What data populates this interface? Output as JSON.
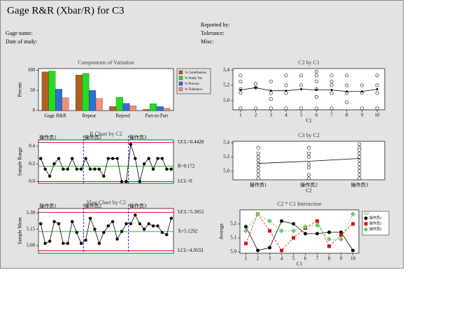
{
  "header": {
    "title": "Gage R&R (Xbar/R) for C3",
    "gage_name": "Gage name:",
    "date": "Date of study:",
    "reported_by": "Reported by:",
    "tolerance": "Tolerance:",
    "misc": "Misc:"
  },
  "chart_data": [
    {
      "type": "bar",
      "title": "Components of Variation",
      "y_label": "Percent",
      "categories": [
        "Gage R&R",
        "Repeat",
        "Reprod",
        "Part-to-Part"
      ],
      "series": [
        {
          "name": "% Contribution",
          "color": "#b0601e",
          "values": [
            96,
            88,
            10,
            3
          ]
        },
        {
          "name": "% Study Var",
          "color": "#22dd22",
          "values": [
            98,
            92,
            33,
            17
          ]
        },
        {
          "name": "% Process",
          "color": "#2f6fd0",
          "values": [
            53,
            50,
            18,
            10
          ]
        },
        {
          "name": "% Tolerance",
          "color": "#f4907a",
          "values": [
            32,
            30,
            12,
            6
          ]
        }
      ],
      "ylim": [
        0,
        104
      ],
      "yticks": [
        {
          "value": 0,
          "label": "0"
        },
        50,
        100
      ],
      "legend": "right"
    },
    {
      "type": "control",
      "title": "R Chart by C2",
      "y_label": "Sample Range",
      "groups": [
        "操作员1",
        "操作员2",
        "操作员3"
      ],
      "values": [
        0.26,
        0.14,
        0.06,
        0.2,
        0.26,
        0.14,
        0.14,
        0.26,
        0.14,
        0.14,
        0.26,
        0.14,
        0.14,
        0.14,
        0.06,
        0.26,
        0.26,
        0.26,
        0.0,
        0.0,
        0.42,
        0.26,
        0.0,
        0.2,
        0.26,
        0.14,
        0.26,
        0.26,
        0.14,
        0.14
      ],
      "limits": [
        {
          "value": 0.4428,
          "label": "UCL=0.4428",
          "color": "#d00000"
        },
        {
          "value": 0.172,
          "label": "R=0.172",
          "color": "#00b000"
        },
        {
          "value": 0,
          "label": "LCL=0",
          "color": "#d00000"
        }
      ],
      "ylim": [
        -0.02,
        0.47
      ],
      "yticks": [
        {
          "value": 0,
          "label": "0.0"
        },
        0.2,
        0.4
      ]
    },
    {
      "type": "control",
      "title": "Xbar Chart by C2",
      "y_label": "Sample Mean",
      "groups": [
        "操作员1",
        "操作员2",
        "操作员3"
      ],
      "values": [
        5.2,
        5.02,
        5.04,
        5.22,
        5.2,
        5.02,
        5.02,
        5.22,
        5.12,
        5.02,
        5.05,
        5.25,
        5.15,
        5.02,
        5.12,
        5.18,
        5.22,
        5.06,
        5.13,
        5.2,
        5.2,
        5.28,
        5.2,
        5.15,
        5.2,
        5.18,
        5.18,
        5.12,
        5.1,
        5.25
      ],
      "limits": [
        {
          "value": 5.3052,
          "label": "UCL=5.3052",
          "color": "#d00000"
        },
        {
          "value": 5.1292,
          "label": "X=5.1292",
          "color": "#00b000"
        },
        {
          "value": 4.9533,
          "label": "LCL=4.9533",
          "color": "#d00000"
        }
      ],
      "ylim": [
        4.93,
        5.34
      ],
      "yticks": [
        {
          "value": 5.0,
          "label": "5.00"
        },
        5.15,
        {
          "value": 5.3,
          "label": "5.30"
        }
      ]
    },
    {
      "type": "scatter",
      "title": "C3 by C1",
      "x_label": "C1",
      "x": [
        1,
        1,
        1,
        1,
        1,
        2,
        2,
        2,
        3,
        3,
        3,
        3,
        4,
        4,
        4,
        4,
        5,
        5,
        5,
        6,
        6,
        6,
        6,
        6,
        6,
        7,
        7,
        7,
        7,
        7,
        8,
        8,
        8,
        8,
        9,
        9,
        9,
        10,
        10,
        10,
        10
      ],
      "values": [
        5.33,
        5.25,
        5.15,
        5.1,
        4.9,
        5.22,
        5.17,
        4.9,
        5.25,
        5.1,
        5.02,
        4.9,
        5.33,
        5.2,
        5.1,
        4.9,
        5.33,
        5.2,
        4.9,
        5.38,
        5.33,
        5.25,
        5.15,
        5.05,
        4.9,
        5.33,
        5.25,
        5.2,
        5.1,
        4.9,
        5.33,
        5.2,
        5.1,
        4.98,
        5.2,
        5.1,
        4.9,
        5.33,
        5.2,
        5.1,
        4.9
      ],
      "mean_x": [
        1,
        2,
        3,
        4,
        5,
        6,
        7,
        8,
        9,
        10
      ],
      "means": [
        5.14,
        5.17,
        5.13,
        5.13,
        5.15,
        5.14,
        5.14,
        5.12,
        5.12,
        5.15
      ],
      "xlim": [
        0.5,
        10.5
      ],
      "xticks": [
        1,
        2,
        3,
        4,
        5,
        6,
        7,
        8,
        9,
        10
      ],
      "ylim": [
        4.88,
        5.42
      ],
      "yticks": [
        {
          "value": 5.0,
          "label": "5.0"
        },
        5.2,
        5.4
      ]
    },
    {
      "type": "dotplot",
      "title": "C3 by C2",
      "x_label": "C2",
      "categories": [
        "操作员1",
        "操作员2",
        "操作员3"
      ],
      "points": [
        [
          5.33,
          5.25,
          5.2,
          5.15,
          5.1,
          5.05,
          5.0,
          4.95,
          4.9
        ],
        [
          5.33,
          5.25,
          5.2,
          5.1,
          5.05,
          4.95,
          4.9
        ],
        [
          5.38,
          5.33,
          5.3,
          5.25,
          5.2,
          5.15,
          5.1,
          5.05,
          5.0,
          4.95,
          4.9
        ]
      ],
      "means": [
        5.11,
        5.14,
        5.18
      ],
      "ylim": [
        4.88,
        5.42
      ],
      "yticks": [
        {
          "value": 5.0,
          "label": "5.0"
        },
        5.2,
        5.4
      ]
    },
    {
      "type": "line",
      "title": "C2 * C1 Interaction",
      "x_label": "C1",
      "y_label": "Average",
      "legend_title": "C2",
      "x": [
        1,
        2,
        3,
        4,
        5,
        6,
        7,
        8,
        9,
        10
      ],
      "series": [
        {
          "name": "操作员1",
          "color": "#000000",
          "marker": "circle",
          "values": [
            5.18,
            5.01,
            5.03,
            5.22,
            5.2,
            5.13,
            5.13,
            5.14,
            5.14,
            5.01
          ]
        },
        {
          "name": "操作员2",
          "color": "#dd1111",
          "marker": "square",
          "values": [
            5.06,
            5.27,
            5.15,
            5.01,
            5.1,
            5.17,
            5.22,
            5.04,
            5.12,
            5.2
          ]
        },
        {
          "name": "操作员3",
          "color": "#66cc66",
          "marker": "diamond",
          "values": [
            5.15,
            5.27,
            5.22,
            5.15,
            5.15,
            5.18,
            5.19,
            5.09,
            5.09,
            5.27
          ]
        }
      ],
      "xlim": [
        0.5,
        10.5
      ],
      "xticks": [
        1,
        2,
        3,
        4,
        5,
        6,
        7,
        8,
        9,
        10
      ],
      "ylim": [
        4.99,
        5.3
      ],
      "yticks": [
        {
          "value": 5.0,
          "label": "5.0"
        },
        5.1,
        5.2
      ],
      "legend": "right"
    }
  ]
}
